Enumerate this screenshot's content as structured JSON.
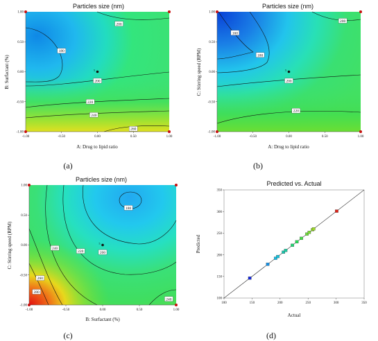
{
  "chart_data": [
    {
      "type": "contour",
      "title": "Particles size (nm)",
      "xlabel": "A: Drug to lipid ratio",
      "ylabel": "B: Surfactant (%)",
      "x_ticks": [
        "-1.00",
        "-0.50",
        "0.00",
        "0.50",
        "1.00"
      ],
      "y_ticks": [
        "-1.00",
        "-0.50",
        "0.00",
        "0.50",
        "1.00"
      ],
      "xlim": [
        -1,
        1
      ],
      "ylim": [
        -1,
        1
      ],
      "contour_labels": [
        {
          "level": "180",
          "x": -0.5,
          "y": 0.35
        },
        {
          "level": "200",
          "x": 0.3,
          "y": 0.8
        },
        {
          "level": "200",
          "x": 0.0,
          "y": -0.15
        },
        {
          "level": "220",
          "x": -0.1,
          "y": -0.5
        },
        {
          "level": "240",
          "x": -0.05,
          "y": -0.72
        },
        {
          "level": "260",
          "x": 0.5,
          "y": -0.95
        }
      ],
      "center_point": {
        "x": 0,
        "y": 0,
        "label": "5"
      },
      "caption": "(a)"
    },
    {
      "type": "contour",
      "title": "Particles size (nm)",
      "xlabel": "A: Drug to lipid ratio",
      "ylabel": "C: Stirring speed (RPM)",
      "x_ticks": [
        "-1.00",
        "-0.50",
        "0.00",
        "0.50",
        "1.00"
      ],
      "y_ticks": [
        "-1.00",
        "-0.50",
        "0.00",
        "0.50",
        "1.00"
      ],
      "xlim": [
        -1,
        1
      ],
      "ylim": [
        -1,
        1
      ],
      "contour_labels": [
        {
          "level": "160",
          "x": -0.75,
          "y": 0.65
        },
        {
          "level": "180",
          "x": -0.4,
          "y": 0.28
        },
        {
          "level": "200",
          "x": 0.75,
          "y": 0.85
        },
        {
          "level": "200",
          "x": 0.0,
          "y": -0.15
        },
        {
          "level": "220",
          "x": 0.1,
          "y": -0.65
        }
      ],
      "center_point": {
        "x": 0,
        "y": 0,
        "label": "5"
      },
      "caption": "(b)"
    },
    {
      "type": "contour",
      "title": "Particles size (nm)",
      "xlabel": "B: Surfactant (%)",
      "ylabel": "C: Stirring speed (RPM)",
      "x_ticks": [
        "-1.00",
        "-0.50",
        "0.00",
        "0.50",
        "1.00"
      ],
      "y_ticks": [
        "-1.00",
        "-0.50",
        "0.00",
        "0.50",
        "1.00"
      ],
      "xlim": [
        -1,
        1
      ],
      "ylim": [
        -1,
        1
      ],
      "contour_labels": [
        {
          "level": "180",
          "x": 0.35,
          "y": 0.62
        },
        {
          "level": "200",
          "x": 0.0,
          "y": -0.12
        },
        {
          "level": "220",
          "x": -0.3,
          "y": -0.1
        },
        {
          "level": "240",
          "x": -0.65,
          "y": -0.05
        },
        {
          "level": "260",
          "x": -0.85,
          "y": -0.55
        },
        {
          "level": "280",
          "x": -0.9,
          "y": -0.78
        },
        {
          "level": "240",
          "x": 0.9,
          "y": -0.9
        }
      ],
      "center_point": {
        "x": 0,
        "y": 0,
        "label": "5"
      },
      "caption": "(c)"
    },
    {
      "type": "scatter",
      "title": "Predicted vs. Actual",
      "xlabel": "Actual",
      "ylabel": "Predicted",
      "xlim": [
        100,
        350
      ],
      "ylim": [
        100,
        350
      ],
      "x_ticks": [
        "100",
        "150",
        "200",
        "250",
        "300",
        "350"
      ],
      "y_ticks": [
        "100",
        "150",
        "200",
        "250",
        "300",
        "350"
      ],
      "reference_line": [
        [
          100,
          100
        ],
        [
          350,
          350
        ]
      ],
      "points": [
        {
          "x": 146,
          "y": 146
        },
        {
          "x": 178,
          "y": 178
        },
        {
          "x": 192,
          "y": 192
        },
        {
          "x": 196,
          "y": 196
        },
        {
          "x": 206,
          "y": 206
        },
        {
          "x": 210,
          "y": 210
        },
        {
          "x": 222,
          "y": 222
        },
        {
          "x": 230,
          "y": 230
        },
        {
          "x": 238,
          "y": 238
        },
        {
          "x": 248,
          "y": 248
        },
        {
          "x": 252,
          "y": 252
        },
        {
          "x": 258,
          "y": 258
        },
        {
          "x": 260,
          "y": 260
        },
        {
          "x": 301,
          "y": 301
        }
      ],
      "caption": "(d)"
    }
  ]
}
